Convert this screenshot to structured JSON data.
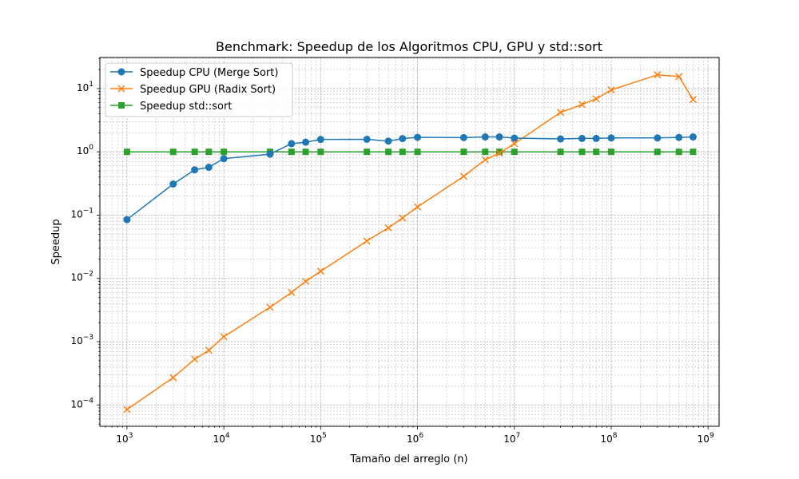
{
  "chart_data": {
    "type": "line",
    "title": "Benchmark: Speedup de los Algoritmos CPU, GPU y std::sort",
    "xlabel": "Tamaño del arreglo (n)",
    "ylabel": "Speedup",
    "xscale": "log",
    "yscale": "log",
    "xlim": [
      525,
      1300000000
    ],
    "ylim": [
      4.6e-05,
      31
    ],
    "grid": true,
    "legend_position": "top-left",
    "x_ticks": [
      {
        "value": 1000,
        "base": "10",
        "exp": "3"
      },
      {
        "value": 10000,
        "base": "10",
        "exp": "4"
      },
      {
        "value": 100000,
        "base": "10",
        "exp": "5"
      },
      {
        "value": 1000000,
        "base": "10",
        "exp": "6"
      },
      {
        "value": 10000000,
        "base": "10",
        "exp": "7"
      },
      {
        "value": 100000000,
        "base": "10",
        "exp": "8"
      },
      {
        "value": 1000000000,
        "base": "10",
        "exp": "9"
      }
    ],
    "y_ticks": [
      {
        "value": 0.0001,
        "base": "10",
        "exp": "−4"
      },
      {
        "value": 0.001,
        "base": "10",
        "exp": "−3"
      },
      {
        "value": 0.01,
        "base": "10",
        "exp": "−2"
      },
      {
        "value": 0.1,
        "base": "10",
        "exp": "−1"
      },
      {
        "value": 1,
        "base": "10",
        "exp": "0"
      },
      {
        "value": 10,
        "base": "10",
        "exp": "1"
      }
    ],
    "x": [
      1000,
      3000,
      5000,
      7000,
      10000,
      30000,
      50000,
      70000,
      100000,
      300000,
      500000,
      700000,
      1000000,
      3000000,
      5000000,
      7000000,
      10000000,
      30000000,
      50000000,
      70000000,
      100000000,
      300000000,
      500000000,
      700000000
    ],
    "series": [
      {
        "name": "Speedup CPU (Merge Sort)",
        "color": "#1f77b4",
        "marker": "circle",
        "values": [
          0.085,
          0.31,
          0.52,
          0.57,
          0.78,
          0.92,
          1.35,
          1.42,
          1.57,
          1.58,
          1.48,
          1.62,
          1.7,
          1.68,
          1.72,
          1.72,
          1.65,
          1.6,
          1.63,
          1.63,
          1.66,
          1.66,
          1.69,
          1.72
        ]
      },
      {
        "name": "Speedup GPU (Radix Sort)",
        "color": "#ff7f0e",
        "marker": "x",
        "values": [
          8.5e-05,
          0.00027,
          0.00053,
          0.00073,
          0.0012,
          0.0035,
          0.006,
          0.009,
          0.013,
          0.039,
          0.063,
          0.09,
          0.135,
          0.41,
          0.75,
          0.95,
          1.35,
          4.2,
          5.6,
          6.9,
          9.5,
          16.5,
          15.5,
          6.7
        ]
      },
      {
        "name": "Speedup std::sort",
        "color": "#2ca02c",
        "marker": "square",
        "values": [
          1,
          1,
          1,
          1,
          1,
          1,
          1,
          1,
          1,
          1,
          1,
          1,
          1,
          1,
          1,
          1,
          1,
          1,
          1,
          1,
          1,
          1,
          1,
          1
        ]
      }
    ]
  }
}
